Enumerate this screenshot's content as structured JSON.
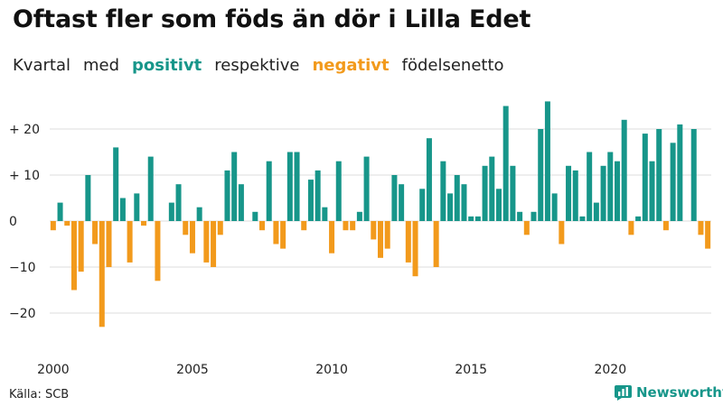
{
  "header": {
    "title": "Oftast fler som föds än dör i Lilla Edet",
    "subtitle_prefix": "Kvartal",
    "subtitle_med": "med",
    "subtitle_positive": "positivt",
    "subtitle_mid": "respektive",
    "subtitle_negative": "negativt",
    "subtitle_suffix": "födelsenetto"
  },
  "colors": {
    "positive": "#17968a",
    "negative": "#f29a1c",
    "grid": "#dddddd",
    "axis_text": "#222222"
  },
  "footer": {
    "source": "Källa: SCB",
    "brand": "Newsworthy",
    "brand_icon": "bar-chart-icon"
  },
  "chart_data": {
    "type": "bar",
    "title": "Oftast fler som föds än dör i Lilla Edet",
    "subtitle": "Kvartal med positivt respektive negativt födelsenetto",
    "xlabel": "",
    "ylabel": "",
    "ylim": [
      -28,
      28
    ],
    "y_ticks": [
      -20,
      -10,
      0,
      10,
      20
    ],
    "y_tick_labels": [
      "−20",
      "−10",
      "0",
      "+ 10",
      "+ 20"
    ],
    "x_ticks": [
      "2000",
      "2005",
      "2010",
      "2015",
      "2020"
    ],
    "x_tick_start_years": [
      2000,
      2005,
      2010,
      2015,
      2020
    ],
    "start_year": 2000,
    "periods_per_year": 4,
    "values": [
      -2,
      4,
      -1,
      -15,
      -11,
      10,
      -5,
      -23,
      -10,
      16,
      5,
      -9,
      6,
      -1,
      14,
      -13,
      0,
      4,
      8,
      -3,
      -7,
      3,
      -9,
      -10,
      -3,
      11,
      15,
      8,
      0,
      2,
      -2,
      13,
      -5,
      -6,
      15,
      15,
      -2,
      9,
      11,
      3,
      -7,
      13,
      -2,
      -2,
      2,
      14,
      -4,
      -8,
      -6,
      10,
      8,
      -9,
      -12,
      7,
      18,
      -10,
      13,
      6,
      10,
      8,
      1,
      1,
      12,
      14,
      7,
      25,
      12,
      2,
      -3,
      2,
      20,
      26,
      6,
      -5,
      12,
      11,
      1,
      15,
      4,
      12,
      15,
      13,
      22,
      -3,
      1,
      19,
      13,
      20,
      -2,
      17,
      21,
      0,
      20,
      -3,
      -6
    ]
  }
}
